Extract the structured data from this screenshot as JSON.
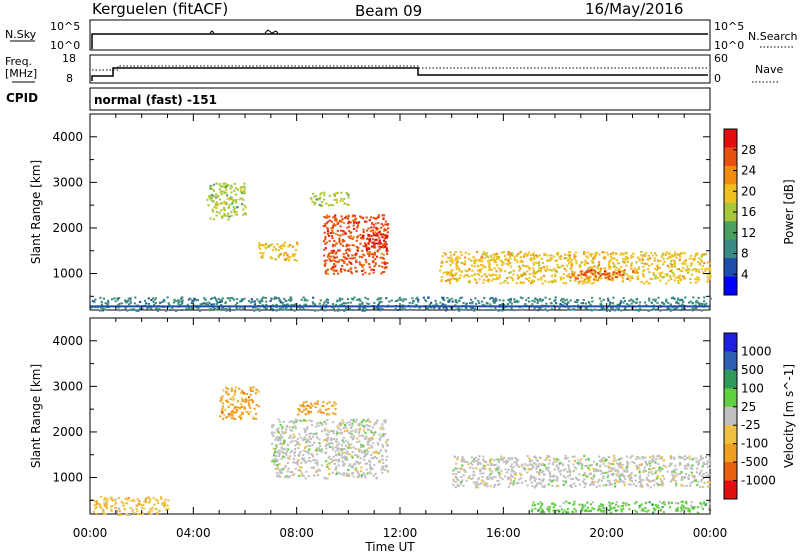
{
  "header": {
    "station": "Kerguelen (fitACF)",
    "beam": "Beam 09",
    "date": "16/May/2016"
  },
  "strip_labels": {
    "nsky": "N.Sky",
    "nsky_ticks": [
      "10^5",
      "10^0"
    ],
    "nsearch": "N.Search",
    "nsearch_ticks": [
      "10^5",
      "10^0"
    ],
    "freq": "Freq.",
    "freq_unit": "[MHz]",
    "freq_ticks": [
      "18",
      "8"
    ],
    "nave": "Nave",
    "nave_ticks": [
      "60",
      "0"
    ],
    "cpid": "CPID",
    "cpid_value": "normal (fast) -151"
  },
  "colors": {
    "power_scale": [
      "#0000ff",
      "#1f4fa8",
      "#3b8a86",
      "#4aa060",
      "#a8c83c",
      "#f0c020",
      "#f08c10",
      "#e85010",
      "#e01010"
    ],
    "velocity_scale": [
      "#1f1fe0",
      "#2f5fb0",
      "#2f9a5a",
      "#60d040",
      "#c0c0c0",
      "#f0c040",
      "#f0a020",
      "#e86010",
      "#e01010"
    ]
  },
  "chart_data": [
    {
      "type": "heatmap",
      "panel": "power",
      "ylabel": "Slant Range [km]",
      "yticks": [
        "1000",
        "2000",
        "3000",
        "4000"
      ],
      "ylim": [
        200,
        4500
      ],
      "x_ticks": [
        "00:00",
        "04:00",
        "08:00",
        "12:00",
        "16:00",
        "20:00",
        "00:00"
      ],
      "colorbar_label": "Power [dB]",
      "colorbar_ticks": [
        "28",
        "24",
        "20",
        "16",
        "12",
        "8",
        "4"
      ],
      "regions": [
        {
          "time": "04:30-06:00",
          "range_km": [
            2200,
            3000
          ],
          "power_db": 14
        },
        {
          "time": "06:30-08:00",
          "range_km": [
            1300,
            1700
          ],
          "power_db": 18
        },
        {
          "time": "08:30-10:00",
          "range_km": [
            2500,
            2800
          ],
          "power_db": 16
        },
        {
          "time": "09:00-11:30",
          "range_km": [
            1000,
            2300
          ],
          "power_db": 24
        },
        {
          "time": "10:30-11:30",
          "range_km": [
            1500,
            1900
          ],
          "power_db": 28
        },
        {
          "time": "13:30-23:59",
          "range_km": [
            800,
            1500
          ],
          "power_db": 18
        },
        {
          "time": "18:30-21:00",
          "range_km": [
            900,
            1100
          ],
          "power_db": 24
        },
        {
          "time": "00:00-23:59",
          "range_km": [
            200,
            500
          ],
          "power_db": 10
        }
      ]
    },
    {
      "type": "heatmap",
      "panel": "velocity",
      "ylabel": "Slant Range [km]",
      "yticks": [
        "1000",
        "2000",
        "3000",
        "4000"
      ],
      "ylim": [
        200,
        4500
      ],
      "x_ticks": [
        "00:00",
        "04:00",
        "08:00",
        "12:00",
        "16:00",
        "20:00",
        "00:00"
      ],
      "xlabel": "Time UT",
      "colorbar_label": "Velocity [m s^-1]",
      "colorbar_ticks": [
        "1000",
        "500",
        "100",
        "25",
        "-25",
        "-100",
        "-500",
        "-1000"
      ],
      "regions": [
        {
          "time": "05:00-06:30",
          "range_km": [
            2300,
            3000
          ],
          "velocity": -300
        },
        {
          "time": "08:00-09:30",
          "range_km": [
            2400,
            2700
          ],
          "velocity": -200
        },
        {
          "time": "07:00-11:30",
          "range_km": [
            1000,
            2300
          ],
          "velocity": 0
        },
        {
          "time": "14:00-23:59",
          "range_km": [
            800,
            1500
          ],
          "velocity": 0
        },
        {
          "time": "00:00-03:00",
          "range_km": [
            200,
            600
          ],
          "velocity": -80
        },
        {
          "time": "17:00-23:59",
          "range_km": [
            250,
            500
          ],
          "velocity": 60
        }
      ]
    }
  ]
}
